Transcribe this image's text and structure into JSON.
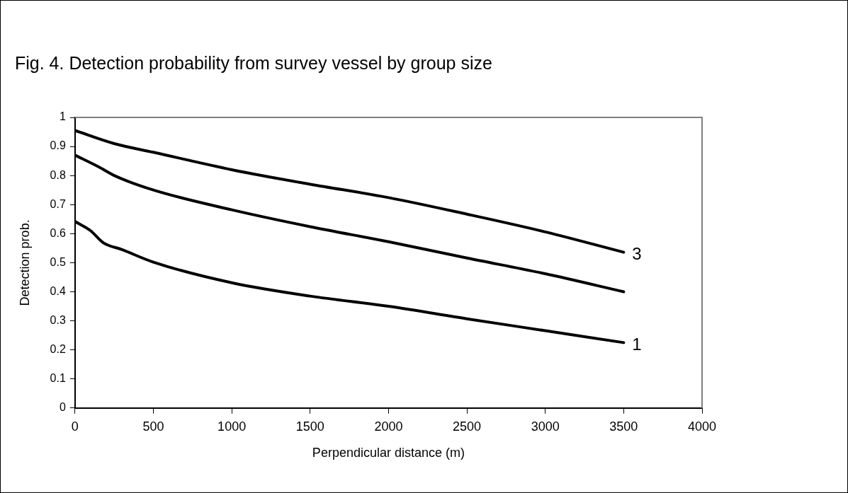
{
  "chart_data": {
    "type": "line",
    "title": "Fig. 4. Detection probability from survey vessel by group size",
    "xlabel": "Perpendicular distance (m)",
    "ylabel": "Detection prob.",
    "xlim": [
      0,
      4000
    ],
    "xticks": [
      0,
      500,
      1000,
      1500,
      2000,
      2500,
      3000,
      3500,
      4000
    ],
    "ylim": [
      0,
      1
    ],
    "yticks": [
      0,
      0.1,
      0.2,
      0.3,
      0.4,
      0.5,
      0.6,
      0.7,
      0.8,
      0.9,
      1
    ],
    "grid": false,
    "legend": false,
    "marker": "none",
    "line_style": "solid",
    "series": [
      {
        "name": "3",
        "color": "#000000",
        "x": [
          0,
          250,
          500,
          1000,
          1500,
          2000,
          2500,
          3000,
          3500
        ],
        "values": [
          0.955,
          0.91,
          0.88,
          0.82,
          0.77,
          0.724,
          0.667,
          0.606,
          0.536
        ]
      },
      {
        "color": "#000000",
        "x": [
          0,
          150,
          250,
          500,
          1000,
          1500,
          2000,
          2500,
          3000,
          3500
        ],
        "values": [
          0.87,
          0.83,
          0.8,
          0.75,
          0.682,
          0.624,
          0.572,
          0.516,
          0.462,
          0.4
        ]
      },
      {
        "name": "1",
        "color": "#000000",
        "x": [
          0,
          100,
          180,
          300,
          500,
          1000,
          1500,
          2000,
          2500,
          3000,
          3500
        ],
        "values": [
          0.642,
          0.61,
          0.569,
          0.545,
          0.502,
          0.431,
          0.385,
          0.35,
          0.307,
          0.266,
          0.225
        ]
      }
    ]
  }
}
